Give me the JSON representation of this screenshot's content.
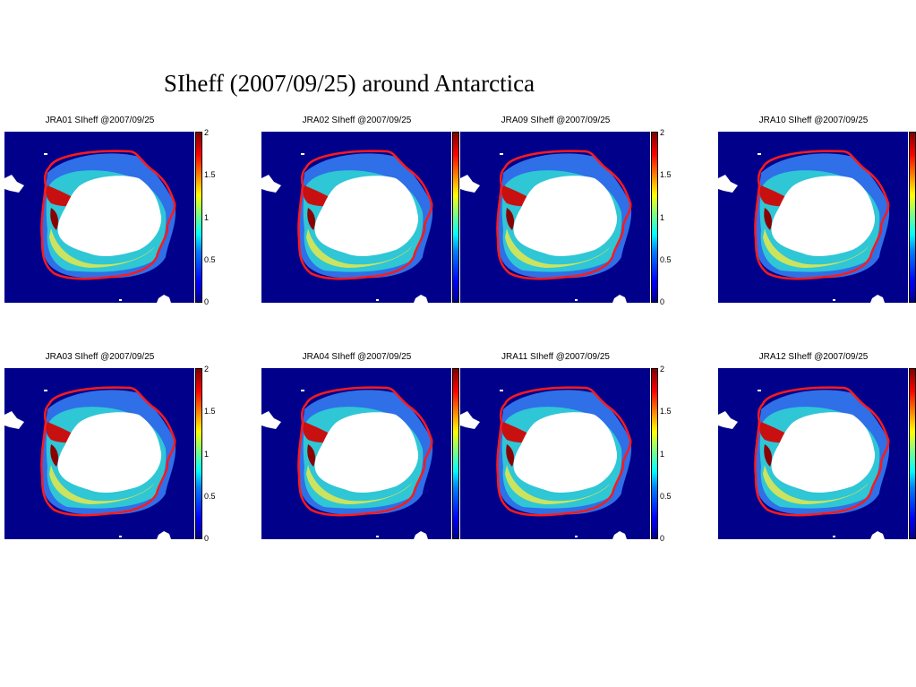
{
  "title": "SIheff (2007/09/25) around Antarctica",
  "chart_data": [
    {
      "type": "heatmap",
      "title": "JRA01 SIheff @2007/09/25",
      "colorbar_ticks": [
        "0",
        "0.5",
        "1",
        "1.5",
        "2"
      ],
      "colorbar_range": [
        0,
        2
      ],
      "colorbar_ticks_visible": true,
      "colormap": "jet"
    },
    {
      "type": "heatmap",
      "title": "JRA02 SIheff @2007/09/25",
      "colorbar_ticks": [],
      "colorbar_range": [
        0,
        2
      ],
      "colorbar_ticks_visible": false,
      "colormap": "jet"
    },
    {
      "type": "heatmap",
      "title": "JRA09 SIheff @2007/09/25",
      "colorbar_ticks": [
        "0",
        "0.5",
        "1",
        "1.5",
        "2"
      ],
      "colorbar_range": [
        0,
        2
      ],
      "colorbar_ticks_visible": true,
      "colormap": "jet"
    },
    {
      "type": "heatmap",
      "title": "JRA10 SIheff @2007/09/25",
      "colorbar_ticks": [],
      "colorbar_range": [
        0,
        2
      ],
      "colorbar_ticks_visible": false,
      "colormap": "jet"
    },
    {
      "type": "heatmap",
      "title": "JRA03 SIheff @2007/09/25",
      "colorbar_ticks": [
        "0",
        "0.5",
        "1",
        "1.5",
        "2"
      ],
      "colorbar_range": [
        0,
        2
      ],
      "colorbar_ticks_visible": true,
      "colormap": "jet"
    },
    {
      "type": "heatmap",
      "title": "JRA04 SIheff @2007/09/25",
      "colorbar_ticks": [],
      "colorbar_range": [
        0,
        2
      ],
      "colorbar_ticks_visible": false,
      "colormap": "jet"
    },
    {
      "type": "heatmap",
      "title": "JRA11 SIheff @2007/09/25",
      "colorbar_ticks": [
        "0",
        "0.5",
        "1",
        "1.5",
        "2"
      ],
      "colorbar_range": [
        0,
        2
      ],
      "colorbar_ticks_visible": true,
      "colormap": "jet"
    },
    {
      "type": "heatmap",
      "title": "JRA12 SIheff @2007/09/25",
      "colorbar_ticks": [],
      "colorbar_range": [
        0,
        2
      ],
      "colorbar_ticks_visible": false,
      "colormap": "jet"
    }
  ]
}
